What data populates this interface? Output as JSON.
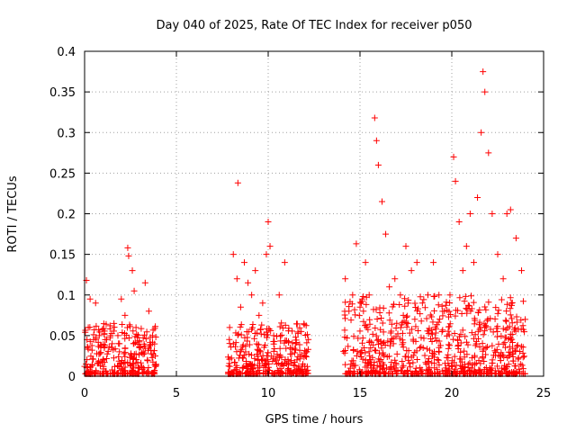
{
  "chart_data": {
    "type": "scatter",
    "title": "Day 040 of 2025, Rate Of TEC Index for receiver p050",
    "xlabel": "GPS time / hours",
    "ylabel": "ROTI / TECUs",
    "xlim": [
      0,
      25
    ],
    "ylim": [
      0,
      0.4
    ],
    "xticks": [
      "0",
      "5",
      "10",
      "15",
      "20",
      "25"
    ],
    "yticks": [
      "0",
      "0.05",
      "0.1",
      "0.15",
      "0.2",
      "0.25",
      "0.3",
      "0.35",
      "0.4"
    ],
    "grid": true,
    "marker": "plus",
    "color": "#ff0000",
    "data_gaps_hours": [
      [
        3.9,
        7.8
      ],
      [
        12.2,
        14.1
      ]
    ],
    "series": [
      {
        "points": [
          [
            0.0,
            0.012
          ],
          [
            0.1,
            0.118
          ],
          [
            0.2,
            0.06
          ],
          [
            0.3,
            0.095
          ],
          [
            0.5,
            0.045
          ],
          [
            0.6,
            0.09
          ],
          [
            0.8,
            0.05
          ],
          [
            1.0,
            0.02
          ],
          [
            1.2,
            0.045
          ],
          [
            1.5,
            0.04
          ],
          [
            1.6,
            0.065
          ],
          [
            1.9,
            0.04
          ],
          [
            2.0,
            0.095
          ],
          [
            2.2,
            0.075
          ],
          [
            2.35,
            0.158
          ],
          [
            2.4,
            0.148
          ],
          [
            2.6,
            0.13
          ],
          [
            2.7,
            0.105
          ],
          [
            2.8,
            0.06
          ],
          [
            3.0,
            0.035
          ],
          [
            3.3,
            0.115
          ],
          [
            3.5,
            0.08
          ],
          [
            3.7,
            0.05
          ],
          [
            3.85,
            0.025
          ],
          [
            7.9,
            0.06
          ],
          [
            8.1,
            0.15
          ],
          [
            8.3,
            0.12
          ],
          [
            8.35,
            0.238
          ],
          [
            8.5,
            0.085
          ],
          [
            8.7,
            0.14
          ],
          [
            8.9,
            0.115
          ],
          [
            9.1,
            0.1
          ],
          [
            9.3,
            0.13
          ],
          [
            9.5,
            0.075
          ],
          [
            9.7,
            0.09
          ],
          [
            9.9,
            0.15
          ],
          [
            10.0,
            0.19
          ],
          [
            10.1,
            0.16
          ],
          [
            10.3,
            0.05
          ],
          [
            10.6,
            0.1
          ],
          [
            10.9,
            0.14
          ],
          [
            11.2,
            0.035
          ],
          [
            11.5,
            0.04
          ],
          [
            11.8,
            0.055
          ],
          [
            12.1,
            0.03
          ],
          [
            14.2,
            0.12
          ],
          [
            14.4,
            0.08
          ],
          [
            14.6,
            0.1
          ],
          [
            14.8,
            0.163
          ],
          [
            15.0,
            0.085
          ],
          [
            15.3,
            0.14
          ],
          [
            15.5,
            0.1
          ],
          [
            15.8,
            0.318
          ],
          [
            15.9,
            0.29
          ],
          [
            16.0,
            0.26
          ],
          [
            16.2,
            0.215
          ],
          [
            16.4,
            0.175
          ],
          [
            16.6,
            0.11
          ],
          [
            16.9,
            0.12
          ],
          [
            17.2,
            0.1
          ],
          [
            17.5,
            0.16
          ],
          [
            17.8,
            0.13
          ],
          [
            18.1,
            0.14
          ],
          [
            18.4,
            0.09
          ],
          [
            18.7,
            0.1
          ],
          [
            19.0,
            0.14
          ],
          [
            19.3,
            0.1
          ],
          [
            19.6,
            0.08
          ],
          [
            19.9,
            0.1
          ],
          [
            20.1,
            0.27
          ],
          [
            20.2,
            0.24
          ],
          [
            20.4,
            0.19
          ],
          [
            20.6,
            0.13
          ],
          [
            20.8,
            0.16
          ],
          [
            21.0,
            0.2
          ],
          [
            21.2,
            0.14
          ],
          [
            21.4,
            0.22
          ],
          [
            21.6,
            0.3
          ],
          [
            21.7,
            0.375
          ],
          [
            21.8,
            0.35
          ],
          [
            22.0,
            0.275
          ],
          [
            22.2,
            0.2
          ],
          [
            22.5,
            0.15
          ],
          [
            22.8,
            0.12
          ],
          [
            23.0,
            0.2
          ],
          [
            23.2,
            0.205
          ],
          [
            23.5,
            0.17
          ],
          [
            23.8,
            0.13
          ],
          [
            24.0,
            0.07
          ]
        ]
      }
    ]
  }
}
